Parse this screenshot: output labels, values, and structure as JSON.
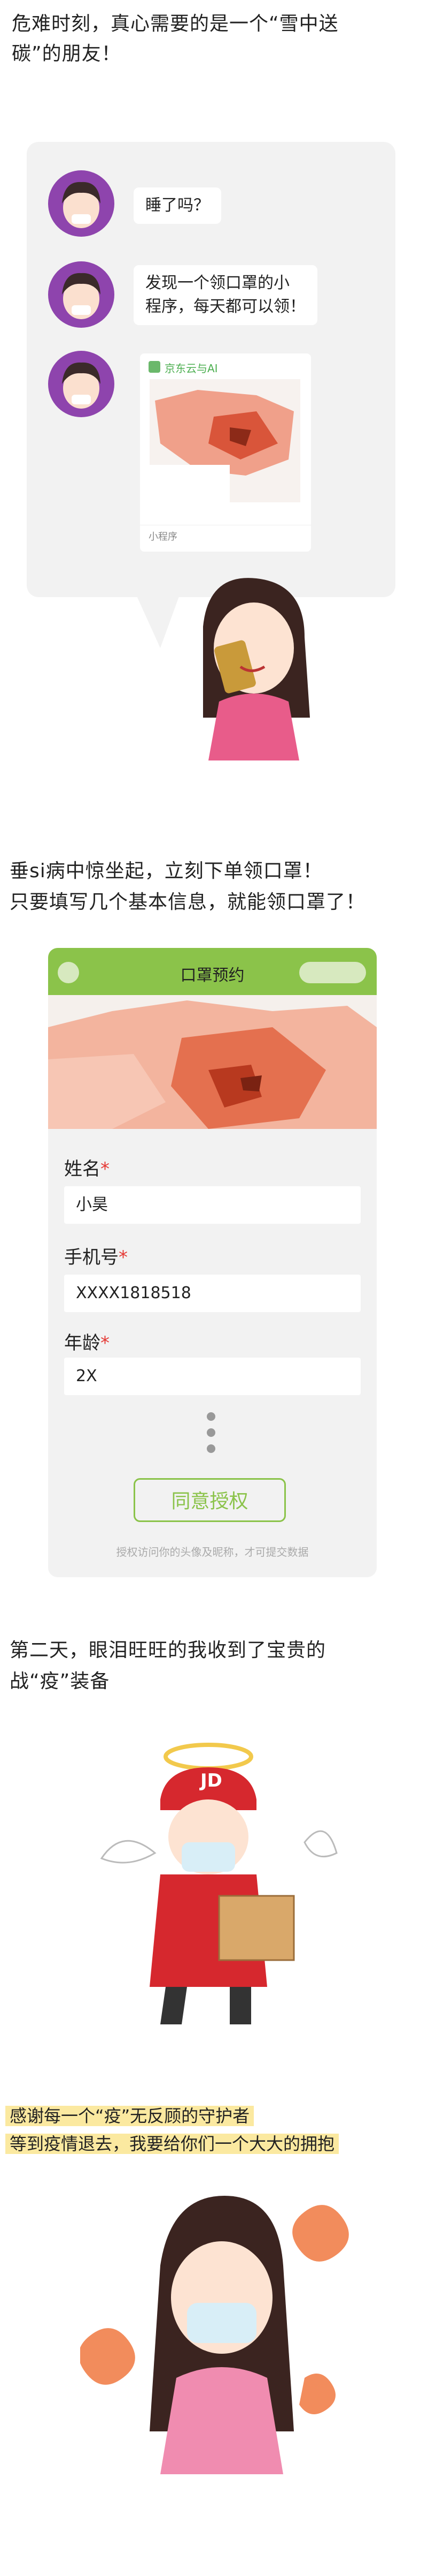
{
  "intro": {
    "lines": [
      "危难时刻，真心需要的是一个“雪中送",
      "碳”的朋友！"
    ]
  },
  "chat": {
    "messages": [
      "睡了吗？",
      "发现一个领口罩的小",
      "程序，每天都可以领！"
    ],
    "card": {
      "title": "京东云与AI",
      "footer": "小程序"
    }
  },
  "section2": {
    "lines": [
      "垂si病中惊坐起，立刻下单领口罩！",
      "只要填写几个基本信息，就能领口罩了！"
    ]
  },
  "form": {
    "header": "口罩预约",
    "fields": [
      {
        "label": "姓名",
        "value": "小昊"
      },
      {
        "label": "手机号",
        "value": "XXXX1818518"
      },
      {
        "label": "年龄",
        "value": "2X"
      }
    ],
    "required": "*",
    "button": "同意授权",
    "note": "授权访问你的头像及昵称，才可提交数据"
  },
  "section3": {
    "lines": [
      "第二天，眼泪旺旺的我收到了宝贵的",
      "战“疫”装备"
    ]
  },
  "courier": {
    "badge": "JD"
  },
  "section4": {
    "lines": [
      "感谢每一个“疫”无反顾的守护者",
      "等到疫情退去，我要给你们一个大大的拥抱"
    ]
  }
}
